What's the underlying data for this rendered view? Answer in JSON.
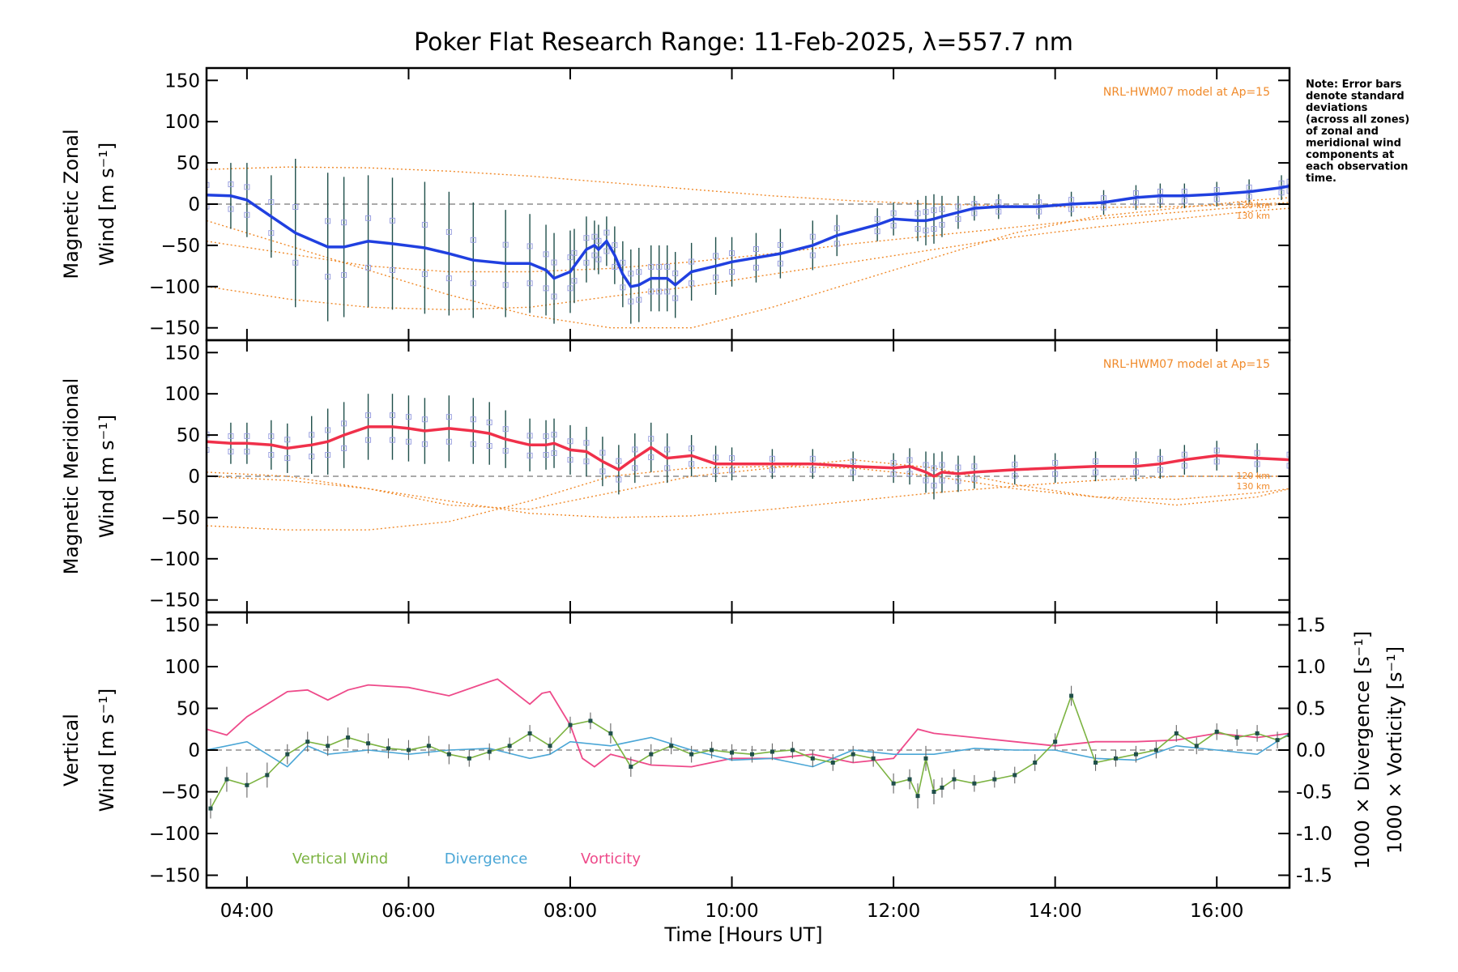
{
  "title": "Poker Flat Research Range: 11-Feb-2025, λ=557.7 nm",
  "note": [
    "Note: Error bars",
    "denote standard",
    "deviations",
    "(across all zones)",
    "of zonal and",
    "meridional wind",
    "components at",
    "each observation",
    "time."
  ],
  "model_label": "NRL-HWM07 model at Ap=15",
  "km_labels": [
    "120 km",
    "130 km"
  ],
  "x_axis": {
    "label": "Time [Hours UT]",
    "ticks": [
      4,
      6,
      8,
      10,
      12,
      14,
      16
    ],
    "tick_labels": [
      "04:00",
      "06:00",
      "08:00",
      "10:00",
      "12:00",
      "14:00",
      "16:00"
    ],
    "range": [
      3.5,
      16.9
    ]
  },
  "colors": {
    "zonal": "#2040e0",
    "meridional": "#f0304a",
    "vertical": "#7cb342",
    "divergence": "#4aa6d6",
    "vorticity": "#ee4a8a",
    "model": "#f08a2a",
    "errorbar": "#1f4f4a",
    "scatter": "#9aa0e0"
  },
  "chart_data": [
    {
      "type": "line",
      "panel": "zonal",
      "ylabel_lines": [
        "Magnetic Zonal",
        "Wind [m s⁻¹]"
      ],
      "ylim": [
        -165,
        165
      ],
      "yticks": [
        -150,
        -100,
        -50,
        0,
        50,
        100,
        150
      ],
      "series": [
        {
          "name": "Magnetic Zonal Wind",
          "x": [
            3.5,
            3.8,
            4.0,
            4.3,
            4.6,
            5.0,
            5.2,
            5.5,
            5.8,
            6.2,
            6.5,
            6.8,
            7.2,
            7.5,
            7.7,
            7.8,
            8.0,
            8.05,
            8.2,
            8.3,
            8.35,
            8.45,
            8.55,
            8.65,
            8.75,
            8.85,
            9.0,
            9.1,
            9.2,
            9.3,
            9.5,
            9.8,
            10.0,
            10.3,
            10.6,
            11.0,
            11.3,
            11.8,
            12.0,
            12.3,
            12.4,
            12.5,
            12.6,
            12.8,
            13.0,
            13.3,
            13.8,
            14.2,
            14.6,
            15.0,
            15.3,
            15.6,
            16.0,
            16.4,
            16.8,
            16.9
          ],
          "values": [
            11,
            10,
            5,
            -15,
            -35,
            -52,
            -52,
            -45,
            -48,
            -53,
            -60,
            -68,
            -72,
            -72,
            -80,
            -90,
            -82,
            -75,
            -55,
            -50,
            -55,
            -45,
            -62,
            -85,
            -100,
            -98,
            -90,
            -90,
            -90,
            -98,
            -82,
            -75,
            -70,
            -65,
            -60,
            -50,
            -38,
            -25,
            -18,
            -20,
            -20,
            -18,
            -15,
            -10,
            -5,
            -3,
            -3,
            0,
            2,
            8,
            10,
            10,
            12,
            15,
            20,
            22
          ],
          "error": [
            35,
            40,
            45,
            50,
            90,
            90,
            85,
            80,
            80,
            80,
            75,
            70,
            65,
            60,
            55,
            55,
            50,
            45,
            40,
            30,
            30,
            30,
            35,
            40,
            45,
            45,
            40,
            40,
            40,
            40,
            35,
            35,
            30,
            30,
            30,
            30,
            25,
            20,
            20,
            25,
            30,
            30,
            25,
            20,
            15,
            15,
            15,
            15,
            15,
            15,
            15,
            15,
            15,
            15,
            15,
            15
          ]
        }
      ],
      "model_lines": [
        {
          "x": [
            3.5,
            4.5,
            5.5,
            6.5,
            7.5,
            8.5,
            9.5,
            10.5,
            11.5,
            12.5,
            13.5,
            14.5,
            15.5,
            16.5,
            16.9
          ],
          "values": [
            -45,
            -60,
            -75,
            -82,
            -82,
            -78,
            -70,
            -60,
            -48,
            -38,
            -28,
            -18,
            -10,
            -2,
            0
          ]
        },
        {
          "x": [
            3.5,
            4.5,
            5.5,
            6.5,
            7.5,
            8.5,
            9.5,
            10.5,
            11.5,
            12.5,
            13.5,
            14.5,
            15.5,
            16.5,
            16.9
          ],
          "values": [
            -100,
            -115,
            -125,
            -128,
            -125,
            -112,
            -100,
            -85,
            -70,
            -55,
            -40,
            -28,
            -18,
            -8,
            -5
          ]
        },
        {
          "x": [
            3.5,
            4.5,
            5.5,
            6.5,
            7.5,
            8.5,
            9.5,
            10.5,
            11.5,
            12.5,
            13.5,
            14.5,
            15.5,
            16.5,
            16.9
          ],
          "values": [
            42,
            45,
            44,
            40,
            34,
            26,
            18,
            10,
            4,
            0,
            -2,
            -4,
            -3,
            0,
            2
          ]
        },
        {
          "x": [
            3.5,
            4.5,
            5.5,
            6.5,
            7.5,
            8.5,
            9.5,
            10.5,
            11.5,
            12.5,
            13.5,
            14.5,
            15.5,
            16.5,
            16.9
          ],
          "values": [
            -20,
            -50,
            -80,
            -110,
            -135,
            -150,
            -150,
            -125,
            -95,
            -65,
            -35,
            -15,
            -5,
            5,
            8
          ]
        }
      ]
    },
    {
      "type": "line",
      "panel": "meridional",
      "ylabel_lines": [
        "Magnetic Meridional",
        "Wind [m s⁻¹]"
      ],
      "ylim": [
        -165,
        165
      ],
      "yticks": [
        -150,
        -100,
        -50,
        0,
        50,
        100,
        150
      ],
      "series": [
        {
          "name": "Magnetic Meridional Wind",
          "x": [
            3.5,
            3.8,
            4.0,
            4.3,
            4.5,
            4.8,
            5.0,
            5.2,
            5.5,
            5.8,
            6.0,
            6.2,
            6.5,
            6.8,
            7.0,
            7.2,
            7.5,
            7.7,
            7.8,
            8.0,
            8.2,
            8.4,
            8.6,
            8.8,
            9.0,
            9.2,
            9.5,
            9.8,
            10.0,
            10.5,
            11.0,
            11.5,
            12.0,
            12.2,
            12.4,
            12.5,
            12.6,
            12.8,
            13.0,
            13.5,
            14.0,
            14.5,
            15.0,
            15.3,
            15.6,
            16.0,
            16.5,
            16.9
          ],
          "values": [
            42,
            40,
            40,
            38,
            34,
            38,
            42,
            50,
            60,
            60,
            58,
            55,
            58,
            55,
            52,
            45,
            38,
            38,
            40,
            32,
            30,
            18,
            8,
            22,
            35,
            22,
            25,
            15,
            15,
            15,
            15,
            12,
            10,
            12,
            5,
            0,
            5,
            3,
            5,
            8,
            10,
            12,
            12,
            15,
            20,
            25,
            22,
            20
          ],
          "error": [
            25,
            25,
            25,
            30,
            30,
            35,
            40,
            40,
            40,
            40,
            40,
            40,
            40,
            40,
            38,
            35,
            32,
            30,
            30,
            30,
            30,
            30,
            30,
            30,
            30,
            30,
            25,
            22,
            20,
            18,
            18,
            18,
            18,
            22,
            25,
            28,
            25,
            22,
            20,
            18,
            18,
            18,
            18,
            18,
            18,
            18,
            18,
            18
          ]
        }
      ],
      "model_lines": [
        {
          "x": [
            3.5,
            4.5,
            5.5,
            6.5,
            7.5,
            8.5,
            9.5,
            10.5,
            11.5,
            12.5,
            13.5,
            14.5,
            15.5,
            16.5,
            16.9
          ],
          "values": [
            -60,
            -65,
            -65,
            -55,
            -30,
            0,
            10,
            12,
            10,
            0,
            -15,
            -25,
            -28,
            -20,
            -15
          ]
        },
        {
          "x": [
            3.5,
            4.5,
            5.5,
            6.5,
            7.5,
            8.5,
            9.5,
            10.5,
            11.5,
            12.5,
            13.5,
            14.5,
            15.5,
            16.5,
            16.9
          ],
          "values": [
            5,
            0,
            -15,
            -35,
            -40,
            -20,
            0,
            10,
            20,
            10,
            -10,
            -25,
            -35,
            -25,
            -15
          ]
        },
        {
          "x": [
            3.5,
            4.5,
            5.5,
            6.5,
            7.5,
            8.5,
            9.5,
            10.5,
            11.5,
            12.5,
            13.5,
            14.5,
            15.5,
            16.5,
            16.9
          ],
          "values": [
            0,
            -5,
            -15,
            -30,
            -45,
            -50,
            -48,
            -40,
            -30,
            -20,
            -12,
            -5,
            0,
            0,
            0
          ]
        }
      ]
    },
    {
      "type": "line",
      "panel": "vertical",
      "ylabel_lines": [
        "Vertical",
        "Wind [m s⁻¹]"
      ],
      "ylim": [
        -165,
        165
      ],
      "yticks": [
        -150,
        -100,
        -50,
        0,
        50,
        100,
        150
      ],
      "right_ylabel_div": "1000 × Divergence [s⁻¹]",
      "right_ylabel_vort": "1000 × Vorticity [s⁻¹]",
      "right_ylim": [
        -1.65,
        1.65
      ],
      "right_yticks": [
        -1.5,
        -1.0,
        -0.5,
        0.0,
        0.5,
        1.0,
        1.5
      ],
      "right_ytick_labels": [
        "-1.5",
        "-1.0",
        "-0.5",
        "0.0",
        "0.5",
        "1.0",
        "1.5"
      ],
      "legend": [
        "Vertical Wind",
        "Divergence",
        "Vorticity"
      ],
      "series": [
        {
          "name": "Vertical Wind",
          "x": [
            3.55,
            3.75,
            4.0,
            4.25,
            4.5,
            4.75,
            5.0,
            5.25,
            5.5,
            5.75,
            6.0,
            6.25,
            6.5,
            6.75,
            7.0,
            7.25,
            7.5,
            7.75,
            8.0,
            8.25,
            8.5,
            8.75,
            9.0,
            9.25,
            9.5,
            9.75,
            10.0,
            10.25,
            10.5,
            10.75,
            11.0,
            11.25,
            11.5,
            11.75,
            12.0,
            12.2,
            12.3,
            12.4,
            12.5,
            12.6,
            12.75,
            13.0,
            13.25,
            13.5,
            13.75,
            14.0,
            14.2,
            14.5,
            14.75,
            15.0,
            15.25,
            15.5,
            15.75,
            16.0,
            16.25,
            16.5,
            16.75,
            16.9
          ],
          "values": [
            -70,
            -35,
            -42,
            -30,
            -5,
            10,
            5,
            15,
            8,
            2,
            0,
            5,
            -5,
            -10,
            -2,
            5,
            20,
            5,
            30,
            35,
            20,
            -20,
            -5,
            5,
            -5,
            0,
            -3,
            -5,
            -2,
            0,
            -10,
            -15,
            -5,
            -10,
            -40,
            -35,
            -55,
            -10,
            -50,
            -45,
            -35,
            -40,
            -35,
            -30,
            -15,
            10,
            65,
            -15,
            -10,
            -5,
            0,
            20,
            5,
            22,
            15,
            20,
            12,
            18
          ],
          "error": [
            12,
            15,
            15,
            15,
            12,
            12,
            12,
            12,
            12,
            12,
            12,
            12,
            12,
            10,
            10,
            10,
            10,
            10,
            10,
            10,
            12,
            12,
            12,
            10,
            10,
            10,
            10,
            10,
            10,
            10,
            10,
            10,
            10,
            10,
            12,
            12,
            15,
            15,
            15,
            12,
            12,
            10,
            10,
            10,
            10,
            10,
            12,
            10,
            10,
            10,
            10,
            10,
            10,
            10,
            10,
            10,
            10,
            10
          ]
        },
        {
          "name": "Divergence",
          "x": [
            3.5,
            4.0,
            4.5,
            4.75,
            5.0,
            5.5,
            6.0,
            6.5,
            7.0,
            7.5,
            7.75,
            8.0,
            8.5,
            9.0,
            9.5,
            10.0,
            10.5,
            11.0,
            11.5,
            12.0,
            12.5,
            13.0,
            13.5,
            14.0,
            14.5,
            15.0,
            15.5,
            16.0,
            16.5,
            16.9
          ],
          "values": [
            0.0,
            0.1,
            -0.2,
            0.05,
            -0.05,
            0.0,
            -0.05,
            0.0,
            0.02,
            -0.1,
            -0.05,
            0.1,
            0.05,
            0.15,
            0.0,
            -0.12,
            -0.1,
            -0.2,
            0.0,
            -0.05,
            -0.05,
            0.02,
            0.0,
            0.0,
            -0.1,
            -0.12,
            0.05,
            0.0,
            -0.05,
            0.2
          ]
        },
        {
          "name": "Vorticity",
          "x": [
            3.5,
            3.75,
            4.0,
            4.5,
            4.75,
            5.0,
            5.25,
            5.5,
            6.0,
            6.5,
            7.0,
            7.1,
            7.5,
            7.65,
            7.75,
            8.0,
            8.15,
            8.3,
            8.5,
            9.0,
            9.5,
            10.0,
            10.5,
            11.0,
            11.5,
            12.0,
            12.3,
            12.5,
            13.0,
            13.5,
            14.0,
            14.5,
            15.0,
            15.5,
            16.0,
            16.5,
            16.9
          ],
          "values": [
            0.25,
            0.18,
            0.4,
            0.7,
            0.72,
            0.6,
            0.72,
            0.78,
            0.75,
            0.65,
            0.82,
            0.85,
            0.55,
            0.68,
            0.7,
            0.3,
            -0.1,
            -0.2,
            -0.05,
            -0.18,
            -0.2,
            -0.1,
            -0.1,
            -0.05,
            -0.15,
            -0.1,
            0.25,
            0.2,
            0.15,
            0.1,
            0.05,
            0.1,
            0.1,
            0.12,
            0.2,
            0.15,
            0.2
          ]
        }
      ]
    }
  ]
}
